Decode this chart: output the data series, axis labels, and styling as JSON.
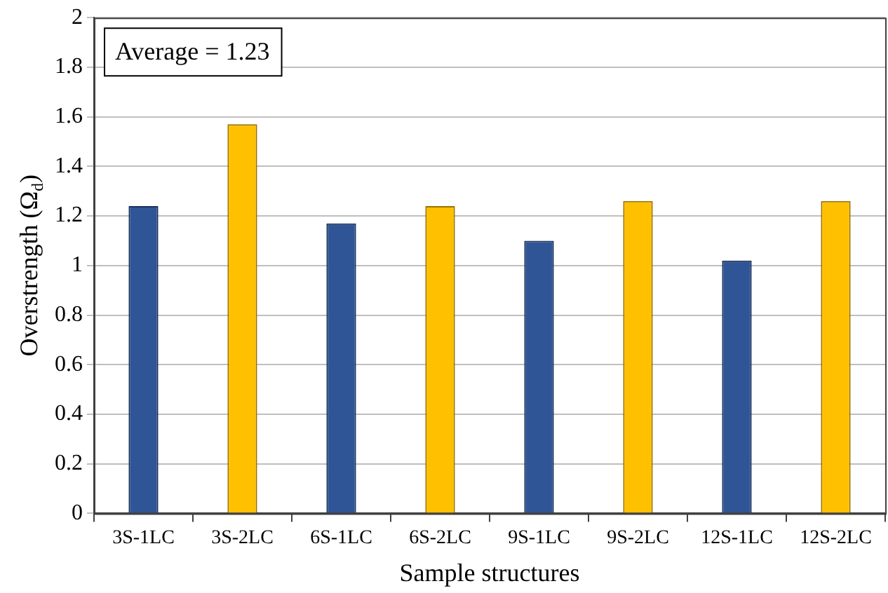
{
  "chart_data": {
    "type": "bar",
    "xlabel": "Sample structures",
    "ylabel": "Overstrength (Ω$_{d}$)",
    "categories": [
      "3S-1LC",
      "3S-2LC",
      "6S-1LC",
      "6S-2LC",
      "9S-1LC",
      "9S-2LC",
      "12S-1LC",
      "12S-2LC"
    ],
    "values": [
      1.24,
      1.57,
      1.17,
      1.24,
      1.1,
      1.26,
      1.02,
      1.26
    ],
    "colors": [
      "#2f5597",
      "#ffc000",
      "#2f5597",
      "#ffc000",
      "#2f5597",
      "#ffc000",
      "#2f5597",
      "#ffc000"
    ],
    "ylim": [
      0,
      2
    ],
    "yticks": [
      0,
      0.2,
      0.4,
      0.6,
      0.8,
      1,
      1.2,
      1.4,
      1.6,
      1.8,
      2
    ],
    "grid": "y",
    "annotations": [
      "Average = 1.23"
    ]
  }
}
